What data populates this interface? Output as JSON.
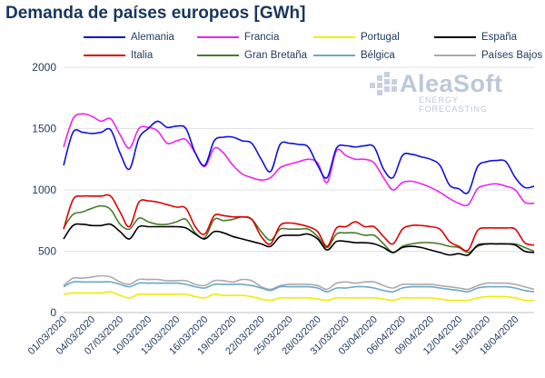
{
  "chart_data": {
    "type": "line",
    "title": "Demanda de países europeos [GWh]",
    "xlabel": "",
    "ylabel": "",
    "ylim": [
      0,
      2000
    ],
    "yticks": [
      0,
      500,
      1000,
      1500,
      2000
    ],
    "grid": "horizontal",
    "legend_position": "top",
    "x_start": "01/03/2020",
    "x_end": "20/04/2020",
    "xtick_labels": [
      "01/03/2020",
      "04/03/2020",
      "07/03/2020",
      "10/03/2020",
      "13/03/2020",
      "16/03/2020",
      "19/03/2020",
      "22/03/2020",
      "25/03/2020",
      "28/03/2020",
      "31/03/2020",
      "03/04/2020",
      "06/04/2020",
      "09/04/2020",
      "12/04/2020",
      "15/04/2020",
      "18/04/2020"
    ],
    "x": [
      "01/03/2020",
      "02/03/2020",
      "03/03/2020",
      "04/03/2020",
      "05/03/2020",
      "06/03/2020",
      "07/03/2020",
      "08/03/2020",
      "09/03/2020",
      "10/03/2020",
      "11/03/2020",
      "12/03/2020",
      "13/03/2020",
      "14/03/2020",
      "15/03/2020",
      "16/03/2020",
      "17/03/2020",
      "18/03/2020",
      "19/03/2020",
      "20/03/2020",
      "21/03/2020",
      "22/03/2020",
      "23/03/2020",
      "24/03/2020",
      "25/03/2020",
      "26/03/2020",
      "27/03/2020",
      "28/03/2020",
      "29/03/2020",
      "30/03/2020",
      "31/03/2020",
      "01/04/2020",
      "02/04/2020",
      "03/04/2020",
      "04/04/2020",
      "05/04/2020",
      "06/04/2020",
      "07/04/2020",
      "08/04/2020",
      "09/04/2020",
      "10/04/2020",
      "11/04/2020",
      "12/04/2020",
      "13/04/2020",
      "14/04/2020",
      "15/04/2020",
      "16/04/2020",
      "17/04/2020",
      "18/04/2020",
      "19/04/2020",
      "20/04/2020"
    ],
    "series": [
      {
        "name": "Alemania",
        "color": "#1010dd",
        "values": [
          1200,
          1470,
          1470,
          1460,
          1470,
          1490,
          1300,
          1170,
          1420,
          1500,
          1560,
          1510,
          1520,
          1500,
          1300,
          1200,
          1400,
          1430,
          1430,
          1400,
          1380,
          1250,
          1150,
          1370,
          1380,
          1370,
          1350,
          1200,
          1100,
          1340,
          1360,
          1350,
          1360,
          1350,
          1170,
          1100,
          1280,
          1290,
          1270,
          1250,
          1200,
          1040,
          1010,
          980,
          1190,
          1230,
          1240,
          1230,
          1100,
          1020,
          1030
        ]
      },
      {
        "name": "Francia",
        "color": "#ee22ee",
        "values": [
          1350,
          1580,
          1620,
          1600,
          1560,
          1580,
          1450,
          1340,
          1500,
          1510,
          1480,
          1380,
          1400,
          1410,
          1300,
          1190,
          1340,
          1300,
          1200,
          1130,
          1100,
          1080,
          1100,
          1180,
          1210,
          1230,
          1250,
          1220,
          1060,
          1320,
          1280,
          1250,
          1250,
          1220,
          1100,
          1000,
          1060,
          1070,
          1050,
          1020,
          980,
          930,
          890,
          880,
          1010,
          1040,
          1050,
          1030,
          1000,
          900,
          890
        ]
      },
      {
        "name": "Portugal",
        "color": "#eeee00",
        "values": [
          150,
          160,
          160,
          160,
          160,
          170,
          140,
          120,
          150,
          150,
          150,
          150,
          150,
          150,
          130,
          120,
          150,
          140,
          140,
          140,
          130,
          110,
          100,
          120,
          120,
          120,
          120,
          110,
          100,
          120,
          120,
          120,
          120,
          120,
          110,
          100,
          120,
          120,
          120,
          120,
          110,
          100,
          100,
          100,
          120,
          130,
          130,
          130,
          120,
          100,
          100
        ]
      },
      {
        "name": "España",
        "color": "#000000",
        "values": [
          600,
          710,
          720,
          710,
          710,
          720,
          660,
          600,
          700,
          700,
          700,
          700,
          700,
          690,
          640,
          600,
          660,
          650,
          620,
          600,
          580,
          560,
          540,
          620,
          630,
          630,
          640,
          600,
          510,
          580,
          580,
          570,
          570,
          560,
          530,
          490,
          530,
          540,
          530,
          510,
          490,
          470,
          480,
          470,
          550,
          560,
          560,
          560,
          550,
          500,
          490
        ]
      },
      {
        "name": "Italia",
        "color": "#dd0000",
        "values": [
          680,
          920,
          950,
          950,
          950,
          950,
          820,
          700,
          900,
          910,
          900,
          880,
          860,
          850,
          700,
          640,
          790,
          790,
          780,
          780,
          760,
          620,
          560,
          710,
          730,
          720,
          700,
          660,
          540,
          690,
          700,
          740,
          700,
          700,
          620,
          560,
          680,
          710,
          710,
          700,
          680,
          580,
          540,
          510,
          670,
          690,
          690,
          690,
          680,
          570,
          550
        ]
      },
      {
        "name": "Gran Bretaña",
        "color": "#4a7a2a",
        "values": [
          690,
          800,
          820,
          850,
          870,
          840,
          720,
          680,
          770,
          740,
          720,
          720,
          740,
          760,
          650,
          610,
          760,
          750,
          760,
          780,
          760,
          660,
          590,
          680,
          680,
          680,
          680,
          620,
          530,
          640,
          650,
          650,
          630,
          630,
          560,
          490,
          540,
          560,
          570,
          570,
          560,
          540,
          530,
          490,
          540,
          560,
          560,
          560,
          560,
          530,
          500
        ]
      },
      {
        "name": "Bélgica",
        "color": "#6aa8c8",
        "values": [
          210,
          250,
          250,
          250,
          250,
          250,
          230,
          210,
          240,
          240,
          240,
          240,
          240,
          230,
          210,
          200,
          230,
          230,
          230,
          230,
          220,
          200,
          180,
          210,
          210,
          210,
          210,
          200,
          170,
          200,
          200,
          210,
          210,
          200,
          180,
          170,
          200,
          210,
          210,
          210,
          200,
          190,
          180,
          170,
          200,
          210,
          210,
          210,
          200,
          180,
          170
        ]
      },
      {
        "name": "Países Bajos",
        "color": "#aaaaaa",
        "values": [
          220,
          280,
          280,
          290,
          300,
          290,
          250,
          230,
          270,
          270,
          270,
          260,
          260,
          260,
          230,
          220,
          260,
          260,
          250,
          270,
          260,
          210,
          190,
          220,
          230,
          230,
          230,
          220,
          190,
          240,
          250,
          240,
          250,
          250,
          220,
          200,
          230,
          230,
          230,
          230,
          220,
          210,
          200,
          190,
          220,
          240,
          240,
          240,
          230,
          210,
          190
        ]
      }
    ]
  },
  "logo": {
    "name": "AleaSoft",
    "tagline": "ENERGY FORECASTING"
  }
}
